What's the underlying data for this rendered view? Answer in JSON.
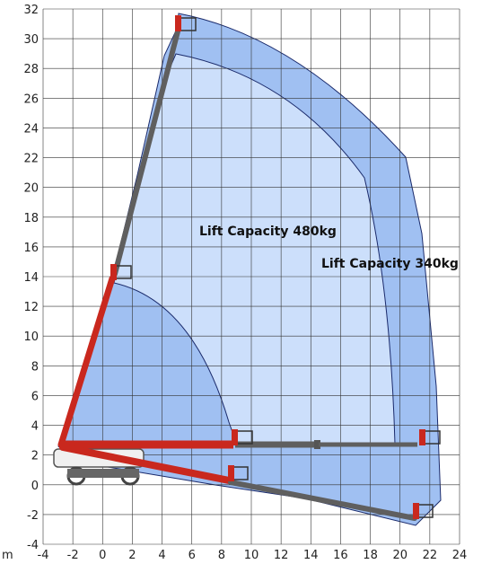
{
  "diagram": {
    "type": "working-range",
    "unit_label": "m",
    "x_axis": {
      "ticks": [
        -4,
        -2,
        0,
        2,
        4,
        6,
        8,
        10,
        12,
        14,
        16,
        18,
        20,
        22,
        24
      ]
    },
    "y_axis": {
      "ticks": [
        -4,
        -2,
        0,
        2,
        4,
        6,
        8,
        10,
        12,
        14,
        16,
        18,
        20,
        22,
        24,
        26,
        28,
        30,
        32
      ]
    },
    "zones": [
      {
        "label": "Lift Capacity 480kg",
        "fill": "#cfe0fb"
      },
      {
        "label": "Lift Capacity 340kg",
        "fill": "#8fb5f0"
      }
    ],
    "colors": {
      "grid": "#333333",
      "boom_grey": "#5f5f5f",
      "boom_red": "#c9281e",
      "outline": "#1a2a6b"
    }
  }
}
